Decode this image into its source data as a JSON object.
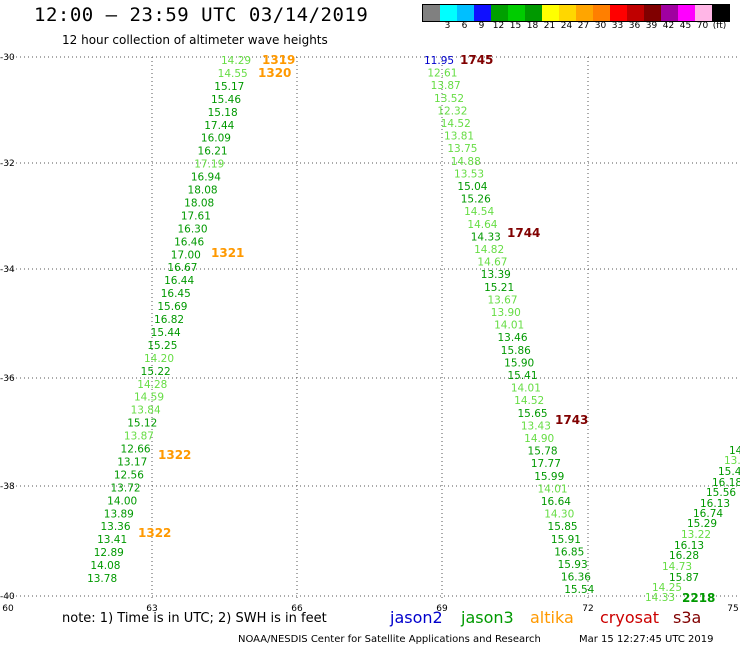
{
  "header": {
    "title": "12:00 – 23:59 UTC 03/14/2019",
    "subtitle": "12 hour collection of altimeter wave heights"
  },
  "legend": {
    "swatches": [
      {
        "label": "",
        "color": "#808080"
      },
      {
        "label": "3",
        "color": "#00ffff"
      },
      {
        "label": "6",
        "color": "#00bfff"
      },
      {
        "label": "9",
        "color": "#1010ff"
      },
      {
        "label": "12",
        "color": "#00a000"
      },
      {
        "label": "15",
        "color": "#00cc00"
      },
      {
        "label": "18",
        "color": "#009900"
      },
      {
        "label": "21",
        "color": "#ffff00"
      },
      {
        "label": "24",
        "color": "#ffd700"
      },
      {
        "label": "27",
        "color": "#ffa500"
      },
      {
        "label": "30",
        "color": "#ff7f00"
      },
      {
        "label": "33",
        "color": "#ff0000"
      },
      {
        "label": "36",
        "color": "#c00000"
      },
      {
        "label": "39",
        "color": "#800000"
      },
      {
        "label": "42",
        "color": "#a000a0"
      },
      {
        "label": "45",
        "color": "#ff00ff"
      },
      {
        "label": "70",
        "color": "#ffb6e6"
      },
      {
        "label": "(ft)",
        "color": "#000000"
      }
    ]
  },
  "map": {
    "lat_labels": [
      "-30",
      "-32",
      "-34",
      "-36",
      "-38",
      "-40"
    ],
    "lon_labels": [
      "60",
      "63",
      "66",
      "69",
      "72",
      "75"
    ]
  },
  "note": "note:  1) Time is in UTC;  2) SWH is in feet",
  "satellites": [
    {
      "name": "jason2",
      "color": "#0000cc"
    },
    {
      "name": "jason3",
      "color": "#009900"
    },
    {
      "name": "altika",
      "color": "#ff9900"
    },
    {
      "name": "cryosat",
      "color": "#cc0000"
    },
    {
      "name": "s3a",
      "color": "#800000"
    }
  ],
  "credit": "NOAA/NESDIS Center for Satellite Applications and Research",
  "timestamp": "Mar 15 12:27:45 UTC 2019",
  "colors": {
    "dark_green": "#009900",
    "light_green": "#66dd44",
    "orange": "#ff9900",
    "maroon": "#800000",
    "dark_blue": "#0000cc"
  },
  "tracks": {
    "track1": {
      "values": [
        "14.29",
        "14.55",
        "15.17",
        "15.46",
        "15.18",
        "17.44",
        "16.09",
        "16.21",
        "17.19",
        "16.94",
        "18.08",
        "18.08",
        "17.61",
        "16.30",
        "16.46",
        "17.00",
        "16.67",
        "16.44",
        "16.45",
        "15.69",
        "16.82",
        "15.44",
        "15.25",
        "14.20",
        "15.22",
        "14.28",
        "14.59",
        "13.84",
        "15.12",
        "13.87",
        "12.66",
        "13.17",
        "12.56",
        "13.72",
        "14.00",
        "13.89",
        "13.36",
        "13.41",
        "12.89",
        "14.08",
        "13.78"
      ],
      "times": [
        "1319",
        "1320",
        "1321",
        "1322",
        "1322"
      ]
    },
    "track2": {
      "values": [
        "11.95",
        "12.61",
        "13.87",
        "13.52",
        "12.32",
        "14.52",
        "13.81",
        "13.75",
        "14.88",
        "13.53",
        "15.04",
        "15.26",
        "14.54",
        "14.64",
        "14.33",
        "14.82",
        "14.67",
        "13.39",
        "15.21",
        "13.67",
        "13.90",
        "14.01",
        "13.46",
        "15.86",
        "15.90",
        "15.41",
        "14.01",
        "14.52",
        "15.65",
        "13.43",
        "14.90",
        "15.78",
        "17.77",
        "15.99",
        "14.01",
        "16.64",
        "14.30",
        "15.85",
        "15.91",
        "16.85",
        "15.93",
        "16.36",
        "15.54"
      ],
      "times": [
        "1745",
        "1744",
        "1743"
      ]
    },
    "track3": {
      "values": [
        "14",
        "13.",
        "15.4",
        "16.18",
        "15.56",
        "16.13",
        "16.74",
        "15.29",
        "13.22",
        "16.13",
        "16.28",
        "14.73",
        "15.87",
        "14.25",
        "14.33"
      ],
      "times": [
        "2218"
      ]
    }
  }
}
